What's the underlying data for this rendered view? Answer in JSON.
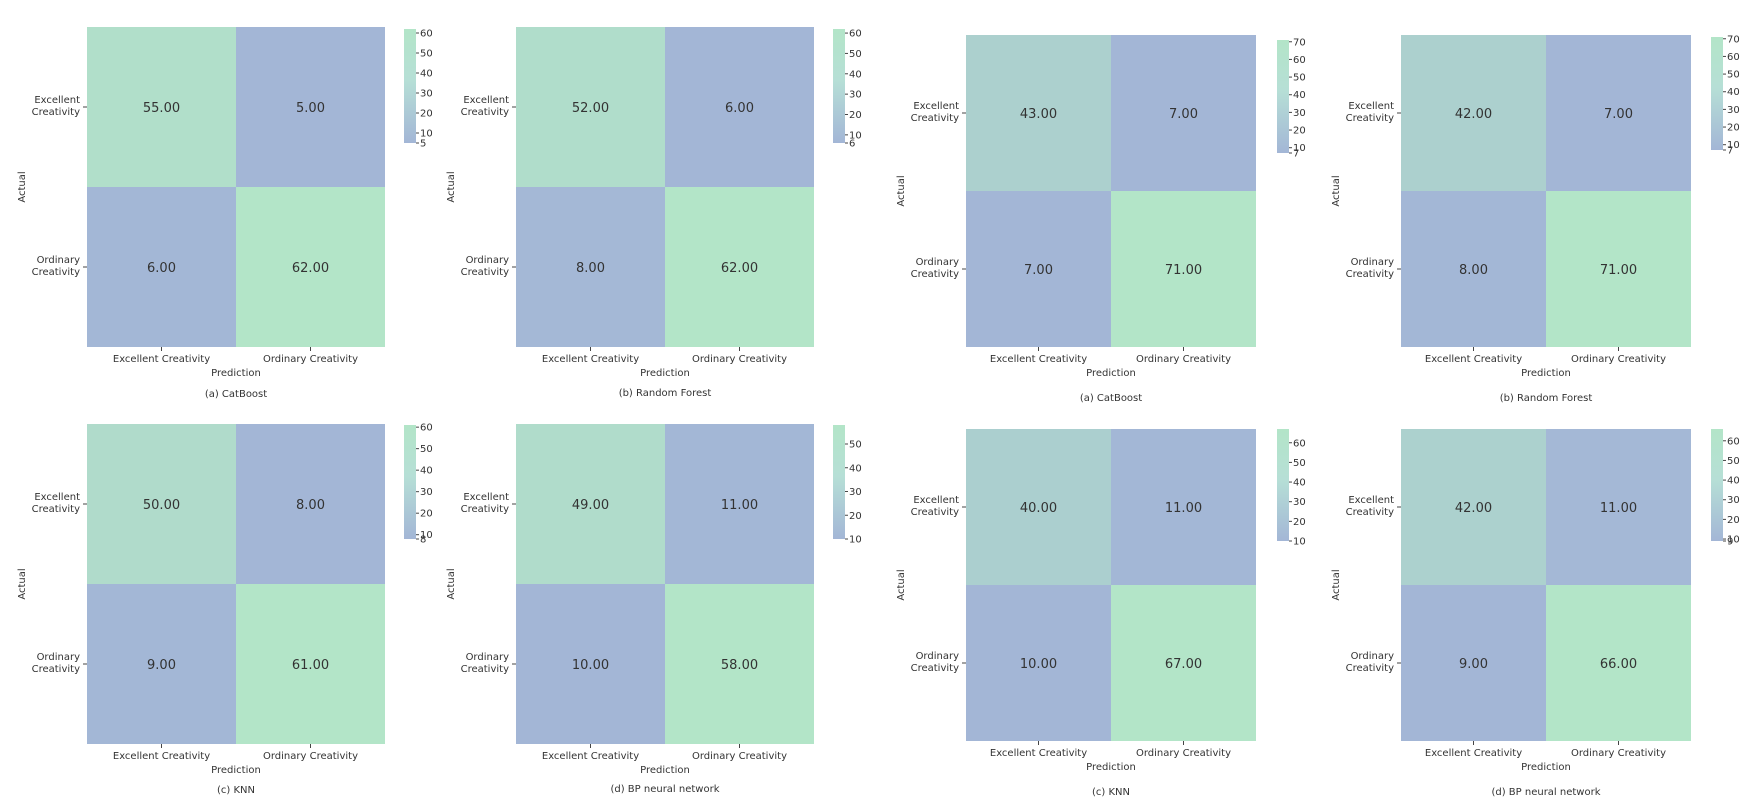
{
  "colors": {
    "high": "#b3e5c8",
    "low": "#a3b6d6",
    "text": "#333333"
  },
  "chart_data": [
    {
      "type": "heatmap",
      "caption": "(a) CatBoost",
      "xlabel": "Prediction",
      "ylabel": "Actual",
      "x_categories": [
        "Excellent Creativity",
        "Ordinary Creativity"
      ],
      "y_categories": [
        "Excellent\nCreativity",
        "Ordinary\nCreativity"
      ],
      "values": [
        [
          55.0,
          5.0
        ],
        [
          6.0,
          62.0
        ]
      ],
      "value_labels": [
        [
          "55.00",
          "5.00"
        ],
        [
          "6.00",
          "62.00"
        ]
      ],
      "colorbar": {
        "min": 5,
        "max": 62,
        "ticks": [
          5,
          10,
          20,
          30,
          40,
          50,
          60
        ]
      }
    },
    {
      "type": "heatmap",
      "caption": "(b) Random Forest",
      "xlabel": "Prediction",
      "ylabel": "Actual",
      "x_categories": [
        "Excellent Creativity",
        "Ordinary Creativity"
      ],
      "y_categories": [
        "Excellent\nCreativity",
        "Ordinary\nCreativity"
      ],
      "values": [
        [
          52.0,
          6.0
        ],
        [
          8.0,
          62.0
        ]
      ],
      "value_labels": [
        [
          "52.00",
          "6.00"
        ],
        [
          "8.00",
          "62.00"
        ]
      ],
      "colorbar": {
        "min": 6,
        "max": 62,
        "ticks": [
          6,
          10,
          20,
          30,
          40,
          50,
          60
        ]
      }
    },
    {
      "type": "heatmap",
      "caption": "(a) CatBoost",
      "xlabel": "Prediction",
      "ylabel": "Actual",
      "x_categories": [
        "Excellent Creativity",
        "Ordinary Creativity"
      ],
      "y_categories": [
        "Excellent\nCreativity",
        "Ordinary\nCreativity"
      ],
      "values": [
        [
          43.0,
          7.0
        ],
        [
          7.0,
          71.0
        ]
      ],
      "value_labels": [
        [
          "43.00",
          "7.00"
        ],
        [
          "7.00",
          "71.00"
        ]
      ],
      "colorbar": {
        "min": 7,
        "max": 71,
        "ticks": [
          7,
          10,
          20,
          30,
          40,
          50,
          60,
          70
        ]
      }
    },
    {
      "type": "heatmap",
      "caption": "(b) Random Forest",
      "xlabel": "Prediction",
      "ylabel": "Actual",
      "x_categories": [
        "Excellent Creativity",
        "Ordinary Creativity"
      ],
      "y_categories": [
        "Excellent\nCreativity",
        "Ordinary\nCreativity"
      ],
      "values": [
        [
          42.0,
          7.0
        ],
        [
          8.0,
          71.0
        ]
      ],
      "value_labels": [
        [
          "42.00",
          "7.00"
        ],
        [
          "8.00",
          "71.00"
        ]
      ],
      "colorbar": {
        "min": 7,
        "max": 71,
        "ticks": [
          7,
          10,
          20,
          30,
          40,
          50,
          60,
          70
        ]
      }
    },
    {
      "type": "heatmap",
      "caption": "(c) KNN",
      "xlabel": "Prediction",
      "ylabel": "Actual",
      "x_categories": [
        "Excellent Creativity",
        "Ordinary Creativity"
      ],
      "y_categories": [
        "Excellent\nCreativity",
        "Ordinary\nCreativity"
      ],
      "values": [
        [
          50.0,
          8.0
        ],
        [
          9.0,
          61.0
        ]
      ],
      "value_labels": [
        [
          "50.00",
          "8.00"
        ],
        [
          "9.00",
          "61.00"
        ]
      ],
      "colorbar": {
        "min": 8,
        "max": 61,
        "ticks": [
          8,
          10,
          20,
          30,
          40,
          50,
          60
        ]
      }
    },
    {
      "type": "heatmap",
      "caption": "(d) BP neural network",
      "xlabel": "Prediction",
      "ylabel": "Actual",
      "x_categories": [
        "Excellent Creativity",
        "Ordinary Creativity"
      ],
      "y_categories": [
        "Excellent\nCreativity",
        "Ordinary\nCreativity"
      ],
      "values": [
        [
          49.0,
          11.0
        ],
        [
          10.0,
          58.0
        ]
      ],
      "value_labels": [
        [
          "49.00",
          "11.00"
        ],
        [
          "10.00",
          "58.00"
        ]
      ],
      "colorbar": {
        "min": 10,
        "max": 58,
        "ticks": [
          10,
          20,
          30,
          40,
          50
        ]
      }
    },
    {
      "type": "heatmap",
      "caption": "(c) KNN",
      "xlabel": "Prediction",
      "ylabel": "Actual",
      "x_categories": [
        "Excellent Creativity",
        "Ordinary Creativity"
      ],
      "y_categories": [
        "Excellent\nCreativity",
        "Ordinary\nCreativity"
      ],
      "values": [
        [
          40.0,
          11.0
        ],
        [
          10.0,
          67.0
        ]
      ],
      "value_labels": [
        [
          "40.00",
          "11.00"
        ],
        [
          "10.00",
          "67.00"
        ]
      ],
      "colorbar": {
        "min": 10,
        "max": 67,
        "ticks": [
          10,
          20,
          30,
          40,
          50,
          60
        ]
      }
    },
    {
      "type": "heatmap",
      "caption": "(d) BP neural network",
      "xlabel": "Prediction",
      "ylabel": "Actual",
      "x_categories": [
        "Excellent Creativity",
        "Ordinary Creativity"
      ],
      "y_categories": [
        "Excellent\nCreativity",
        "Ordinary\nCreativity"
      ],
      "values": [
        [
          42.0,
          11.0
        ],
        [
          9.0,
          66.0
        ]
      ],
      "value_labels": [
        [
          "42.00",
          "11.00"
        ],
        [
          "9.00",
          "66.00"
        ]
      ],
      "colorbar": {
        "min": 9,
        "max": 66,
        "ticks": [
          9,
          10,
          20,
          30,
          40,
          50,
          60
        ]
      }
    }
  ]
}
